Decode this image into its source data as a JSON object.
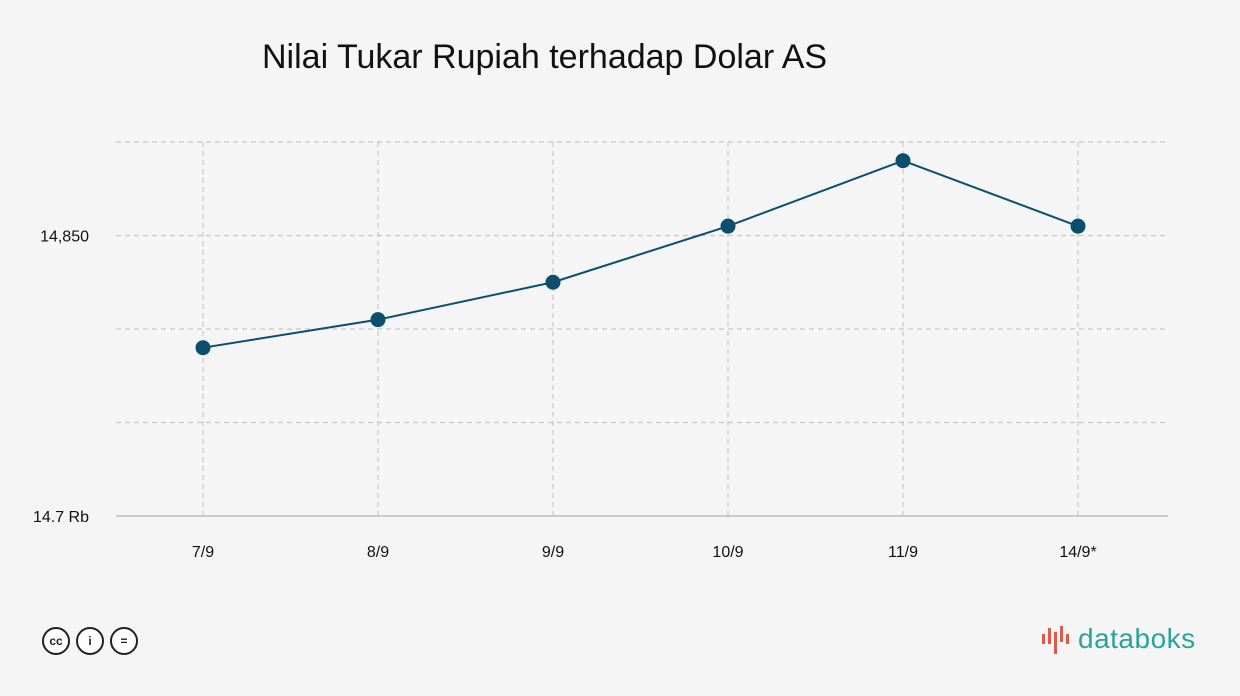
{
  "title": "Nilai Tukar Rupiah terhadap Dolar AS",
  "brand": {
    "name": "databoks",
    "logo_icon": "databoks-logo-icon"
  },
  "license_icons": [
    "cc-icon",
    "by-icon",
    "nd-icon"
  ],
  "license_glyphs": [
    "cc",
    "i",
    "="
  ],
  "colors": {
    "series": "#0b4f6c",
    "brand": "#2ba39a",
    "brand_accent": "#e05a4a",
    "background": "#f5f5f5"
  },
  "chart_data": {
    "type": "line",
    "title": "Nilai Tukar Rupiah terhadap Dolar AS",
    "categories": [
      "7/9",
      "8/9",
      "9/9",
      "10/9",
      "11/9",
      "14/9*"
    ],
    "series": [
      {
        "values": [
          14790,
          14805,
          14825,
          14855,
          14890,
          14855
        ]
      }
    ],
    "ylim": [
      14700,
      14900
    ],
    "y_gridlines": [
      14750,
      14800,
      14850,
      14900
    ],
    "y_tick_labels": [
      {
        "value": 14700,
        "label": "14.7 Rb"
      },
      {
        "value": 14850,
        "label": "14,850"
      }
    ],
    "grid": true,
    "legend": "none",
    "xlabel": "",
    "ylabel": ""
  }
}
